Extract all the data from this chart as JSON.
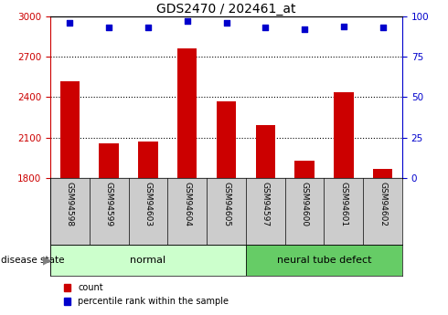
{
  "title": "GDS2470 / 202461_at",
  "categories": [
    "GSM94598",
    "GSM94599",
    "GSM94603",
    "GSM94604",
    "GSM94605",
    "GSM94597",
    "GSM94600",
    "GSM94601",
    "GSM94602"
  ],
  "bar_values": [
    2520,
    2060,
    2070,
    2760,
    2370,
    2190,
    1930,
    2440,
    1870
  ],
  "percentile_values": [
    96,
    93,
    93,
    97,
    96,
    93,
    92,
    94,
    93
  ],
  "ylim_left": [
    1800,
    3000
  ],
  "ylim_right": [
    0,
    100
  ],
  "yticks_left": [
    1800,
    2100,
    2400,
    2700,
    3000
  ],
  "yticks_right": [
    0,
    25,
    50,
    75,
    100
  ],
  "bar_color": "#cc0000",
  "dot_color": "#0000cc",
  "normal_label": "normal",
  "defect_label": "neural tube defect",
  "group_label": "disease state",
  "legend_count": "count",
  "legend_percentile": "percentile rank within the sample",
  "tick_label_color_left": "#cc0000",
  "tick_label_color_right": "#0000cc",
  "normal_bg": "#ccffcc",
  "defect_bg": "#66cc66",
  "xlabel_area_bg": "#cccccc",
  "bg_white": "#ffffff"
}
